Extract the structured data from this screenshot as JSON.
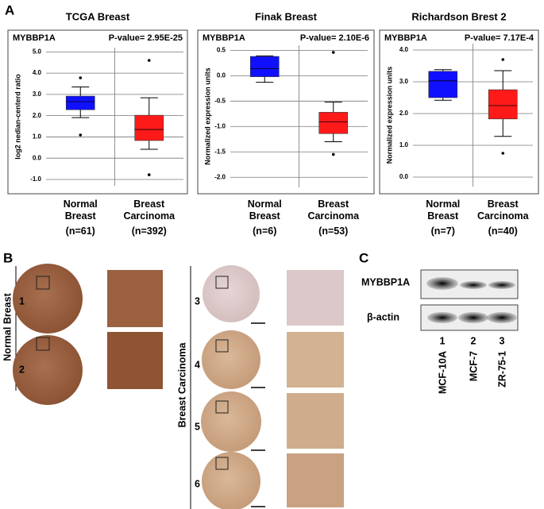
{
  "panel_labels": [
    "A",
    "B",
    "C"
  ],
  "chart_data": [
    {
      "type": "box",
      "title": "TCGA Breast",
      "gene": "MYBBP1A",
      "p_value": "P-value= 2.95E-25",
      "y_label": "log2 nedian-centerd ratio",
      "categories": [
        "Normal Breast",
        "Breast Carcinoma"
      ],
      "sample_sizes": [
        "(n=61)",
        "(n=392)"
      ],
      "ylim": [
        -1.3,
        5.2
      ],
      "yticks": [
        {
          "value": -1,
          "label": "-1.0"
        },
        {
          "value": 0,
          "label": "0.0"
        },
        {
          "value": 1,
          "label": "1.0"
        },
        {
          "value": 2,
          "label": "2.0"
        },
        {
          "value": 3,
          "label": "3.0"
        },
        {
          "value": 4,
          "label": "4.0"
        },
        {
          "value": 5,
          "label": "5.0"
        }
      ],
      "grid": true,
      "boxes": [
        {
          "color": "#1010ff",
          "whisker_low": 1.91,
          "q1": 2.28,
          "median": 2.66,
          "q3": 2.92,
          "whisker_high": 3.35,
          "outliers": [
            3.78,
            1.09
          ]
        },
        {
          "color": "#ff1a1a",
          "whisker_low": 0.42,
          "q1": 0.83,
          "median": 1.35,
          "q3": 2.02,
          "whisker_high": 2.84,
          "outliers": [
            4.6,
            -0.78
          ]
        }
      ]
    },
    {
      "type": "box",
      "title": "Finak Breast",
      "gene": "MYBBP1A",
      "p_value": "P-value= 2.10E-6",
      "y_label": "Normalized expression units",
      "categories": [
        "Normal Breast",
        "Breast Carcinoma"
      ],
      "sample_sizes": [
        "(n=6)",
        "(n=53)"
      ],
      "ylim": [
        -2.2,
        0.6
      ],
      "yticks": [
        0.5,
        {
          "value": 0,
          "label": "0.0"
        },
        -0.5,
        {
          "value": -1,
          "label": "-1.0"
        },
        -1.5,
        {
          "value": -2,
          "label": "-2.0"
        }
      ],
      "grid": true,
      "boxes": [
        {
          "color": "#1010ff",
          "whisker_low": -0.13,
          "q1": -0.02,
          "median": 0.14,
          "q3": 0.38,
          "whisker_high": 0.39,
          "outliers": []
        },
        {
          "color": "#ff1a1a",
          "whisker_low": -1.3,
          "q1": -1.14,
          "median": -0.91,
          "q3": -0.72,
          "whisker_high": -0.52,
          "outliers": [
            0.46,
            -1.55
          ]
        }
      ]
    },
    {
      "type": "box",
      "title": "Richardson Brest 2",
      "gene": "MYBBP1A",
      "p_value": "P-value= 7.17E-4",
      "y_label": "Normalized expression units",
      "categories": [
        "Normal Breast",
        "Breast Carcinoma"
      ],
      "sample_sizes": [
        "(n=7)",
        "(n=40)"
      ],
      "ylim": [
        -0.3,
        4.2
      ],
      "yticks": [
        {
          "value": 0,
          "label": "0.0"
        },
        {
          "value": 1,
          "label": "1.0"
        },
        {
          "value": 2,
          "label": "2.0"
        },
        {
          "value": 3,
          "label": "3.0"
        },
        {
          "value": 4,
          "label": "4.0"
        }
      ],
      "grid": true,
      "boxes": [
        {
          "color": "#1010ff",
          "whisker_low": 2.42,
          "q1": 2.5,
          "median": 3.03,
          "q3": 3.33,
          "whisker_high": 3.38,
          "outliers": []
        },
        {
          "color": "#ff1a1a",
          "whisker_low": 1.28,
          "q1": 1.83,
          "median": 2.25,
          "q3": 2.75,
          "whisker_high": 3.35,
          "outliers": [
            3.7,
            0.75
          ]
        }
      ]
    }
  ],
  "ihc": {
    "groups": [
      "Normal Breast",
      "Breast Carcinoma"
    ],
    "samples": [
      "1",
      "2",
      "3",
      "4",
      "5",
      "6"
    ]
  },
  "western_blot": {
    "proteins": [
      "MYBBP1A",
      "β-actin"
    ],
    "lanes": [
      "1",
      "2",
      "3"
    ],
    "cell_lines": [
      "MCF-10A",
      "MCF-7",
      "ZR-75-1"
    ]
  }
}
